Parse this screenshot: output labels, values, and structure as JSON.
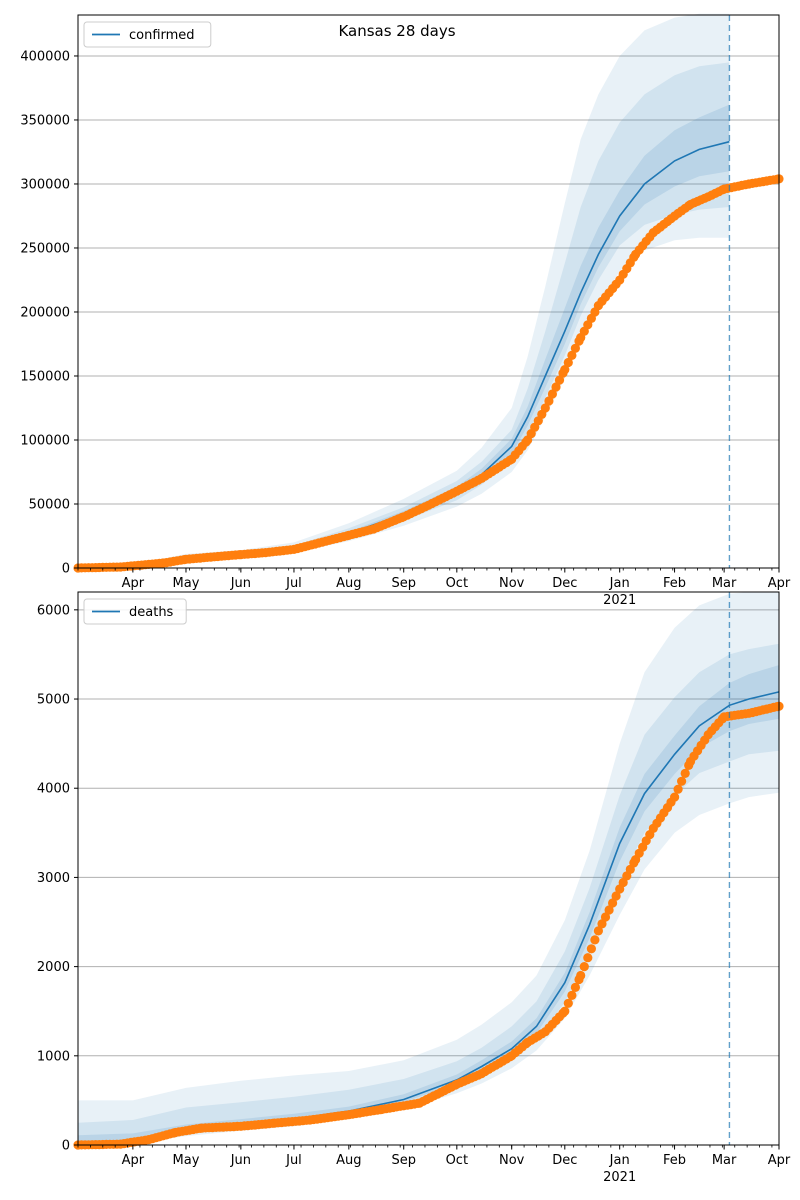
{
  "figure": {
    "title": "Kansas 28 days",
    "colors": {
      "model": "#1f77b4",
      "observed": "#ff7f0e",
      "grid": "#b0b0b0",
      "band": "#1f77b4",
      "forecast_line": "#1f77b4"
    }
  },
  "chart_data": [
    {
      "type": "line",
      "name": "confirmed-panel",
      "x_axis": {
        "range": [
          "2020-03-01",
          "2021-04-01"
        ],
        "month_ticks": [
          {
            "date": "2020-04-01",
            "label": "Apr"
          },
          {
            "date": "2020-05-01",
            "label": "May"
          },
          {
            "date": "2020-06-01",
            "label": "Jun"
          },
          {
            "date": "2020-07-01",
            "label": "Jul"
          },
          {
            "date": "2020-08-01",
            "label": "Aug"
          },
          {
            "date": "2020-09-01",
            "label": "Sep"
          },
          {
            "date": "2020-10-01",
            "label": "Oct"
          },
          {
            "date": "2020-11-01",
            "label": "Nov"
          },
          {
            "date": "2020-12-01",
            "label": "Dec"
          },
          {
            "date": "2021-01-01",
            "label": "Jan"
          },
          {
            "date": "2021-02-01",
            "label": "Feb"
          },
          {
            "date": "2021-03-01",
            "label": "Mar"
          },
          {
            "date": "2021-04-01",
            "label": "Apr"
          }
        ],
        "year_label": {
          "date": "2021-01-01",
          "label": "2021"
        }
      },
      "ylim": [
        0,
        432000
      ],
      "yticks": [
        0,
        50000,
        100000,
        150000,
        200000,
        250000,
        300000,
        350000,
        400000
      ],
      "ytick_labels": [
        "0",
        "50000",
        "100000",
        "150000",
        "200000",
        "250000",
        "300000",
        "350000",
        "400000"
      ],
      "grid": "y",
      "legend": {
        "position": "top-left",
        "entries": [
          "confirmed"
        ]
      },
      "forecast_date": "2021-03-04",
      "model": {
        "name": "confirmed",
        "dates": [
          "2020-03-01",
          "2020-04-01",
          "2020-05-01",
          "2020-06-01",
          "2020-07-01",
          "2020-08-01",
          "2020-09-01",
          "2020-10-01",
          "2020-10-15",
          "2020-11-01",
          "2020-11-10",
          "2020-11-20",
          "2020-12-01",
          "2020-12-10",
          "2020-12-20",
          "2021-01-01",
          "2021-01-15",
          "2021-02-01",
          "2021-02-15",
          "2021-03-04"
        ],
        "values": [
          0,
          1500,
          7000,
          10500,
          15000,
          27000,
          42000,
          60000,
          73000,
          95000,
          118000,
          150000,
          185000,
          215000,
          245000,
          275000,
          300000,
          318000,
          327000,
          333000
        ],
        "bands": [
          {
            "lower": [
              0,
              1000,
              5000,
              8500,
              12000,
              21000,
              33000,
              48000,
              58000,
              75000,
              92000,
              118000,
              148000,
              178000,
              205000,
              232000,
              248000,
              256000,
              258000,
              258000
            ],
            "upper": [
              0,
              2500,
              11000,
              14000,
              20000,
              35000,
              54000,
              76000,
              94000,
              125000,
              165000,
              220000,
              285000,
              335000,
              370000,
              400000,
              420000,
              430000,
              433000,
              433000
            ]
          },
          {
            "lower": [
              0,
              1200,
              6000,
              9500,
              13500,
              24000,
              37000,
              53000,
              65000,
              84000,
              104000,
              133000,
              166000,
              197000,
              225000,
              252000,
              268000,
              276000,
              280000,
              282000
            ],
            "upper": [
              0,
              2000,
              8500,
              12000,
              17500,
              31000,
              47500,
              68000,
              83000,
              108000,
              140000,
              185000,
              238000,
              282000,
              318000,
              348000,
              370000,
              385000,
              392000,
              395000
            ]
          },
          {
            "lower": [
              0,
              1300,
              6500,
              10000,
              14200,
              25500,
              39500,
              56500,
              69000,
              89000,
              111000,
              141000,
              175000,
              206000,
              235000,
              263000,
              284000,
              298000,
              306000,
              310000
            ],
            "upper": [
              0,
              1700,
              7600,
              11000,
              16000,
              28500,
              44500,
              63500,
              77500,
              101000,
              126000,
              163000,
              203000,
              236000,
              266000,
              295000,
              322000,
              342000,
              352000,
              362000
            ]
          }
        ]
      },
      "observed": {
        "dates": [
          "2020-03-01",
          "2020-03-25",
          "2020-04-10",
          "2020-04-20",
          "2020-05-01",
          "2020-05-15",
          "2020-06-01",
          "2020-06-15",
          "2020-07-01",
          "2020-07-15",
          "2020-08-01",
          "2020-08-15",
          "2020-09-01",
          "2020-09-15",
          "2020-10-01",
          "2020-10-15",
          "2020-11-01",
          "2020-11-10",
          "2020-11-20",
          "2020-12-01",
          "2020-12-10",
          "2020-12-20",
          "2021-01-01",
          "2021-01-10",
          "2021-01-20",
          "2021-02-01",
          "2021-02-10",
          "2021-02-20",
          "2021-03-01",
          "2021-03-15",
          "2021-04-01"
        ],
        "values": [
          0,
          800,
          2800,
          4200,
          6800,
          8500,
          10500,
          12000,
          14500,
          19500,
          25500,
          30500,
          40000,
          49000,
          60000,
          70000,
          85000,
          100000,
          125000,
          155000,
          180000,
          205000,
          225000,
          245000,
          262000,
          275000,
          284000,
          290000,
          296000,
          300000,
          304000
        ]
      }
    },
    {
      "type": "line",
      "name": "deaths-panel",
      "x_axis": {
        "range": [
          "2020-03-01",
          "2021-04-01"
        ],
        "month_ticks": [
          {
            "date": "2020-04-01",
            "label": "Apr"
          },
          {
            "date": "2020-05-01",
            "label": "May"
          },
          {
            "date": "2020-06-01",
            "label": "Jun"
          },
          {
            "date": "2020-07-01",
            "label": "Jul"
          },
          {
            "date": "2020-08-01",
            "label": "Aug"
          },
          {
            "date": "2020-09-01",
            "label": "Sep"
          },
          {
            "date": "2020-10-01",
            "label": "Oct"
          },
          {
            "date": "2020-11-01",
            "label": "Nov"
          },
          {
            "date": "2020-12-01",
            "label": "Dec"
          },
          {
            "date": "2021-01-01",
            "label": "Jan"
          },
          {
            "date": "2021-02-01",
            "label": "Feb"
          },
          {
            "date": "2021-03-01",
            "label": "Mar"
          },
          {
            "date": "2021-04-01",
            "label": "Apr"
          }
        ],
        "year_label": {
          "date": "2021-01-01",
          "label": "2021"
        }
      },
      "ylim": [
        0,
        6200
      ],
      "yticks": [
        0,
        1000,
        2000,
        3000,
        4000,
        5000,
        6000
      ],
      "ytick_labels": [
        "0",
        "1000",
        "2000",
        "3000",
        "4000",
        "5000",
        "6000"
      ],
      "grid": "y",
      "legend": {
        "position": "top-left",
        "entries": [
          "deaths"
        ]
      },
      "forecast_date": "2021-03-04",
      "model": {
        "name": "deaths",
        "dates": [
          "2020-03-01",
          "2020-04-01",
          "2020-05-01",
          "2020-06-01",
          "2020-07-01",
          "2020-08-01",
          "2020-09-01",
          "2020-10-01",
          "2020-10-15",
          "2020-11-01",
          "2020-11-15",
          "2020-12-01",
          "2020-12-15",
          "2021-01-01",
          "2021-01-15",
          "2021-02-01",
          "2021-02-15",
          "2021-03-04",
          "2021-03-15",
          "2021-04-01"
        ],
        "values": [
          0,
          60,
          160,
          230,
          290,
          380,
          510,
          730,
          880,
          1080,
          1330,
          1820,
          2470,
          3380,
          3940,
          4380,
          4700,
          4930,
          5000,
          5080
        ],
        "bands": [
          {
            "lower": [
              0,
              20,
              100,
              160,
              210,
              290,
              400,
              580,
              690,
              860,
              1060,
              1420,
              1900,
              2580,
              3090,
              3500,
              3700,
              3830,
              3900,
              3950
            ],
            "upper": [
              500,
              500,
              640,
              720,
              780,
              830,
              950,
              1180,
              1350,
              1600,
              1900,
              2520,
              3300,
              4500,
              5300,
              5800,
              6050,
              6180,
              6200,
              6200
            ]
          },
          {
            "lower": [
              0,
              40,
              130,
              190,
              245,
              330,
              450,
              650,
              780,
              960,
              1180,
              1600,
              2150,
              2950,
              3500,
              3920,
              4170,
              4300,
              4380,
              4420
            ],
            "upper": [
              250,
              280,
              420,
              480,
              540,
              620,
              740,
              940,
              1090,
              1330,
              1610,
              2170,
              2880,
              3920,
              4600,
              5020,
              5300,
              5500,
              5560,
              5620
            ]
          },
          {
            "lower": [
              0,
              50,
              145,
              210,
              270,
              355,
              480,
              690,
              830,
              1020,
              1250,
              1720,
              2320,
              3180,
              3740,
              4160,
              4450,
              4640,
              4720,
              4780
            ],
            "upper": [
              110,
              130,
              230,
              290,
              350,
              430,
              570,
              790,
              950,
              1160,
              1420,
              1930,
              2610,
              3560,
              4160,
              4590,
              4920,
              5180,
              5280,
              5380
            ]
          }
        ]
      },
      "observed": {
        "dates": [
          "2020-03-01",
          "2020-03-25",
          "2020-04-10",
          "2020-04-25",
          "2020-05-10",
          "2020-06-01",
          "2020-06-20",
          "2020-07-10",
          "2020-08-01",
          "2020-08-20",
          "2020-09-10",
          "2020-10-01",
          "2020-10-15",
          "2020-11-01",
          "2020-11-10",
          "2020-11-20",
          "2020-12-01",
          "2020-12-10",
          "2020-12-20",
          "2021-01-01",
          "2021-01-10",
          "2021-01-20",
          "2021-02-01",
          "2021-02-10",
          "2021-02-20",
          "2021-03-01",
          "2021-03-15",
          "2021-04-01"
        ],
        "values": [
          0,
          10,
          60,
          140,
          190,
          210,
          245,
          280,
          340,
          400,
          470,
          680,
          800,
          1000,
          1150,
          1270,
          1500,
          1900,
          2400,
          2870,
          3200,
          3550,
          3900,
          4300,
          4600,
          4800,
          4840,
          4920
        ]
      }
    }
  ]
}
